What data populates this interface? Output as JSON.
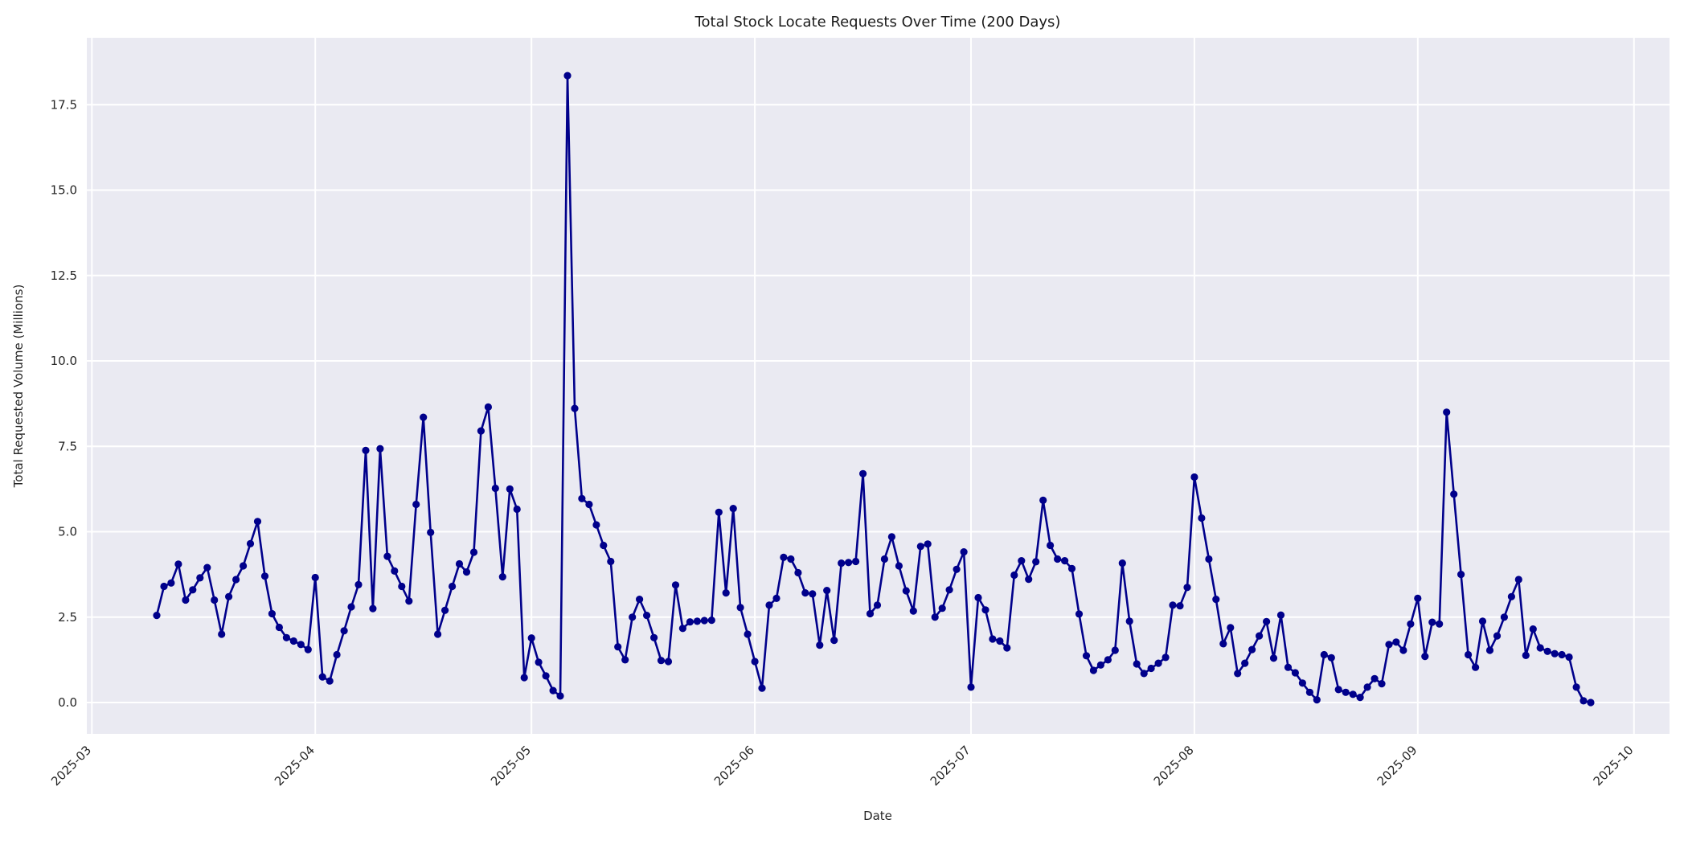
{
  "chart": {
    "title": "Total Stock Locate Requests Over Time (200 Days)",
    "xlabel": "Date",
    "ylabel": "Total Requested Volume (Millions)"
  },
  "chart_data": {
    "type": "line",
    "title": "Total Stock Locate Requests Over Time (200 Days)",
    "xlabel": "Date",
    "ylabel": "Total Requested Volume (Millions)",
    "series_name": "Total Requested Volume",
    "start_date": "2025-03-10",
    "end_date": "2025-09-25",
    "freq": "daily",
    "n_points": 200,
    "line_color": "#00008b",
    "marker": "circle",
    "plot_bg": "#eaeaf2",
    "grid_color": "#ffffff",
    "grid": true,
    "legend_position": "none",
    "x_tick_labels": [
      "2025-03",
      "2025-04",
      "2025-05",
      "2025-06",
      "2025-07",
      "2025-08",
      "2025-09",
      "2025-10"
    ],
    "x_tick_dates": [
      "2025-03-01",
      "2025-04-01",
      "2025-05-01",
      "2025-06-01",
      "2025-07-01",
      "2025-08-01",
      "2025-09-01",
      "2025-10-01"
    ],
    "y_tick_labels": [
      "0.0",
      "2.5",
      "5.0",
      "7.5",
      "10.0",
      "12.5",
      "15.0",
      "17.5"
    ],
    "y_ticks": [
      0,
      2.5,
      5,
      7.5,
      10,
      12.5,
      15,
      17.5
    ],
    "ylim": [
      -0.92,
      19.46
    ],
    "xlim": [
      "2025-02-28",
      "2025-10-06"
    ],
    "values": [
      2.55,
      3.4,
      3.5,
      4.05,
      3.0,
      3.3,
      3.65,
      3.95,
      3.0,
      2.0,
      3.1,
      3.6,
      4.0,
      4.65,
      5.3,
      3.7,
      2.6,
      2.2,
      1.9,
      1.8,
      1.7,
      1.55,
      3.66,
      0.75,
      0.63,
      1.4,
      2.1,
      2.8,
      3.45,
      7.38,
      2.75,
      7.43,
      4.28,
      3.85,
      3.4,
      2.97,
      5.8,
      8.35,
      4.98,
      2.0,
      2.7,
      3.4,
      4.06,
      3.82,
      4.4,
      7.95,
      8.65,
      6.27,
      3.68,
      6.25,
      5.66,
      0.73,
      1.89,
      1.18,
      0.78,
      0.35,
      0.19,
      18.35,
      8.61,
      5.97,
      5.8,
      5.2,
      4.6,
      4.13,
      1.63,
      1.25,
      2.5,
      3.02,
      2.55,
      1.9,
      1.23,
      1.2,
      3.44,
      2.17,
      2.36,
      2.38,
      2.4,
      2.41,
      5.57,
      3.21,
      5.68,
      2.78,
      2.0,
      1.2,
      0.42,
      2.85,
      3.05,
      4.25,
      4.2,
      3.8,
      3.21,
      3.18,
      1.68,
      3.28,
      1.82,
      4.08,
      4.1,
      4.13,
      6.7,
      2.6,
      2.85,
      4.2,
      4.85,
      4.0,
      3.27,
      2.68,
      4.57,
      4.64,
      2.5,
      2.76,
      3.3,
      3.9,
      4.41,
      0.45,
      3.07,
      2.71,
      1.86,
      1.8,
      1.6,
      3.73,
      4.15,
      3.61,
      4.12,
      5.92,
      4.6,
      4.2,
      4.15,
      3.92,
      2.59,
      1.37,
      0.94,
      1.1,
      1.25,
      1.53,
      4.08,
      2.38,
      1.13,
      0.85,
      1.0,
      1.15,
      1.32,
      2.85,
      2.83,
      3.37,
      6.6,
      5.4,
      4.2,
      3.02,
      1.72,
      2.19,
      0.85,
      1.15,
      1.55,
      1.95,
      2.37,
      1.3,
      2.56,
      1.03,
      0.87,
      0.57,
      0.3,
      0.08,
      1.4,
      1.31,
      0.38,
      0.3,
      0.24,
      0.15,
      0.45,
      0.7,
      0.55,
      1.7,
      1.77,
      1.53,
      2.3,
      3.05,
      1.35,
      2.35,
      2.3,
      8.5,
      6.1,
      3.75,
      1.4,
      1.03,
      2.38,
      1.53,
      1.95,
      2.5,
      3.1,
      3.6,
      1.38,
      2.15,
      1.6,
      1.5,
      1.43,
      1.4,
      1.33,
      0.45,
      0.05,
      0.0
    ]
  }
}
